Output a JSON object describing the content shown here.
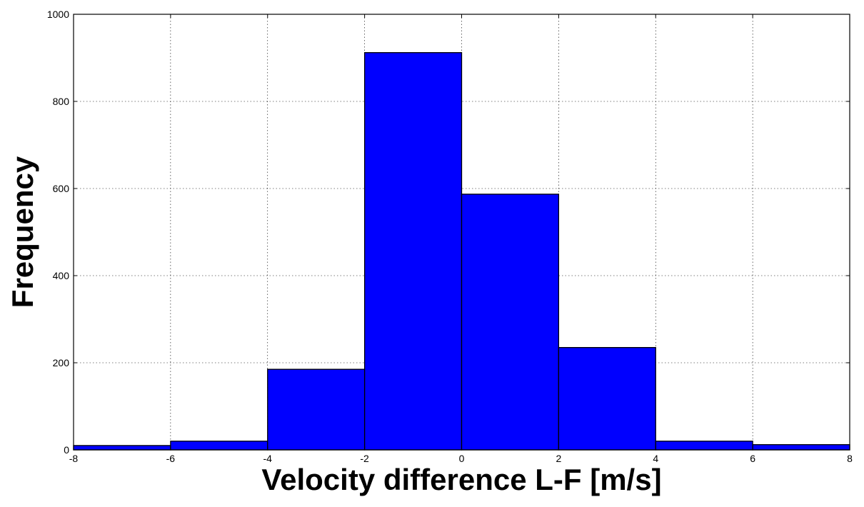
{
  "chart_data": {
    "type": "bar",
    "title": "",
    "xlabel": "Velocity difference L-F [m/s]",
    "ylabel": "Frequency",
    "bin_edges": [
      -8,
      -6,
      -4,
      -2,
      0,
      2,
      4,
      6,
      8
    ],
    "values": [
      10,
      20,
      185,
      912,
      587,
      235,
      20,
      12
    ],
    "xlim": [
      -8,
      8
    ],
    "ylim": [
      0,
      1000
    ],
    "xticks": [
      -8,
      -6,
      -4,
      -2,
      0,
      2,
      4,
      6,
      8
    ],
    "yticks": [
      0,
      200,
      400,
      600,
      800,
      1000
    ],
    "xtick_labels": [
      "-8",
      "-6",
      "-4",
      "-2",
      "0",
      "2",
      "4",
      "6",
      "8"
    ],
    "ytick_labels": [
      "0",
      "200",
      "400",
      "600",
      "800",
      "1000"
    ],
    "grid": true,
    "legend": "none",
    "bar_color": "#0000ff",
    "edge_color": "#000000"
  }
}
